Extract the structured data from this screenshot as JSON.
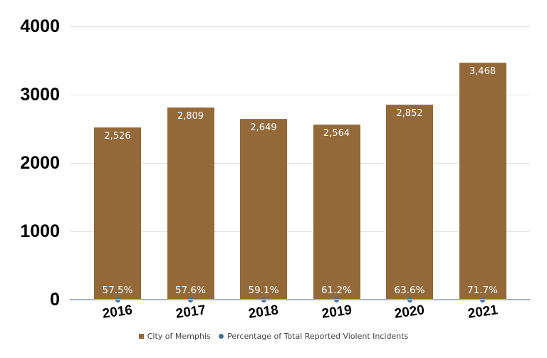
{
  "chart_data": {
    "type": "bar",
    "title": "",
    "xlabel": "",
    "ylabel": "",
    "ylim": [
      0,
      4000
    ],
    "yticks": [
      "0",
      "1000",
      "2000",
      "3000",
      "4000"
    ],
    "grid": true,
    "legend_position": "bottom",
    "categories": [
      "2016",
      "2017",
      "2018",
      "2019",
      "2020",
      "2021"
    ],
    "series": [
      {
        "name": "City of Memphis",
        "type": "bar",
        "color": "#93693a",
        "values": [
          2526,
          2809,
          2649,
          2564,
          2852,
          3468
        ],
        "labels": [
          "2,526",
          "2,809",
          "2,649",
          "2,564",
          "2,852",
          "3,468"
        ]
      },
      {
        "name": "Percentage of Total Reported Violent Incidents",
        "type": "line",
        "color": "#4b7090",
        "values": [
          57.5,
          57.6,
          59.1,
          61.2,
          63.6,
          71.7
        ],
        "labels": [
          "57.5%",
          "57.6%",
          "59.1%",
          "61.2%",
          "63.6%",
          "71.7%"
        ]
      }
    ]
  },
  "legend": {
    "bar_label": "City of Memphis",
    "dot_label": "Percentage of Total Reported Violent Incidents"
  }
}
